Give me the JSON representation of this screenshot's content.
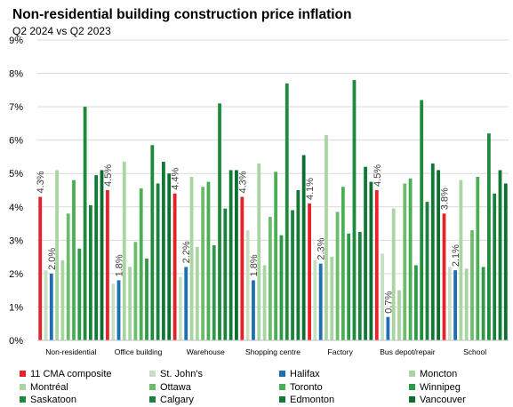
{
  "title": "Non-residential building construction price inflation",
  "subtitle": "Q2 2024 vs Q2 2023",
  "chart_data": {
    "type": "bar",
    "categories": [
      "Non-residential",
      "Office building",
      "Warehouse",
      "Shopping centre",
      "Factory",
      "Bus depot/repair",
      "School"
    ],
    "ylim": [
      0,
      9
    ],
    "y_ticks": [
      "0%",
      "1%",
      "2%",
      "3%",
      "4%",
      "5%",
      "6%",
      "7%",
      "8%",
      "9%"
    ],
    "grid": "horizontal",
    "legend_position": "bottom",
    "series": [
      {
        "name": "11 CMA composite",
        "color": "#e8202a",
        "values": [
          4.3,
          4.5,
          4.4,
          4.3,
          4.1,
          4.5,
          3.8
        ]
      },
      {
        "name": "St. John's",
        "color": "#c7e0c3",
        "values": [
          2.1,
          1.7,
          1.9,
          3.3,
          2.4,
          2.6,
          2.2
        ]
      },
      {
        "name": "Halifax",
        "color": "#1f6fb4",
        "values": [
          2.0,
          1.8,
          2.2,
          1.8,
          2.3,
          0.7,
          2.1
        ]
      },
      {
        "name": "Moncton",
        "color": "#a9d5a1",
        "values": [
          5.1,
          5.35,
          4.9,
          5.3,
          6.15,
          3.95,
          4.8
        ]
      },
      {
        "name": "Montréal",
        "color": "#a9d5a1",
        "values": [
          2.4,
          2.2,
          2.8,
          2.25,
          2.5,
          1.5,
          2.15
        ]
      },
      {
        "name": "Ottawa",
        "color": "#6cbd6b",
        "values": [
          3.8,
          2.95,
          4.6,
          3.7,
          3.85,
          4.7,
          3.3
        ]
      },
      {
        "name": "Toronto",
        "color": "#4bae55",
        "values": [
          4.8,
          4.55,
          4.75,
          5.05,
          4.6,
          4.85,
          4.9
        ]
      },
      {
        "name": "Winnipeg",
        "color": "#2d9a48",
        "values": [
          2.75,
          2.45,
          2.85,
          3.15,
          3.2,
          2.25,
          2.2
        ]
      },
      {
        "name": "Saskatoon",
        "color": "#1f8a3c",
        "values": [
          7.0,
          5.85,
          7.1,
          7.7,
          7.8,
          7.2,
          6.2
        ]
      },
      {
        "name": "Calgary",
        "color": "#19813b",
        "values": [
          4.05,
          4.7,
          3.95,
          3.9,
          3.25,
          4.15,
          4.4
        ]
      },
      {
        "name": "Edmonton",
        "color": "#107a35",
        "values": [
          4.95,
          5.35,
          5.1,
          4.5,
          5.2,
          5.3,
          5.1
        ]
      },
      {
        "name": "Vancouver",
        "color": "#0a6e2e",
        "values": [
          5.1,
          5.0,
          5.1,
          5.55,
          4.75,
          5.1,
          4.7
        ]
      }
    ],
    "data_labels": [
      {
        "series": "11 CMA composite",
        "texts": [
          "4.3%",
          "4.5%",
          "4.4%",
          "4.3%",
          "4.1%",
          "4.5%",
          "3.8%"
        ]
      },
      {
        "series": "Halifax",
        "texts": [
          "2.0%",
          "1.8%",
          "2.2%",
          "1.8%",
          "2.3%",
          "0.7%",
          "2.1%"
        ]
      }
    ],
    "legend_entries": [
      {
        "label": "11 CMA composite",
        "color": "#e8202a"
      },
      {
        "label": "St. John's",
        "color": "#c7e0c3"
      },
      {
        "label": "Halifax",
        "color": "#1f6fb4"
      },
      {
        "label": "Moncton",
        "color": "#a9d5a1"
      },
      {
        "label": "Montréal",
        "color": "#a9d5a1"
      },
      {
        "label": "Ottawa",
        "color": "#6cbd6b"
      },
      {
        "label": "Toronto",
        "color": "#4bae55"
      },
      {
        "label": "Winnipeg",
        "color": "#2d9a48"
      },
      {
        "label": "Saskatoon",
        "color": "#1f8a3c"
      },
      {
        "label": "Calgary",
        "color": "#19813b"
      },
      {
        "label": "Edmonton",
        "color": "#107a35"
      },
      {
        "label": "Vancouver",
        "color": "#0a6e2e"
      }
    ]
  }
}
